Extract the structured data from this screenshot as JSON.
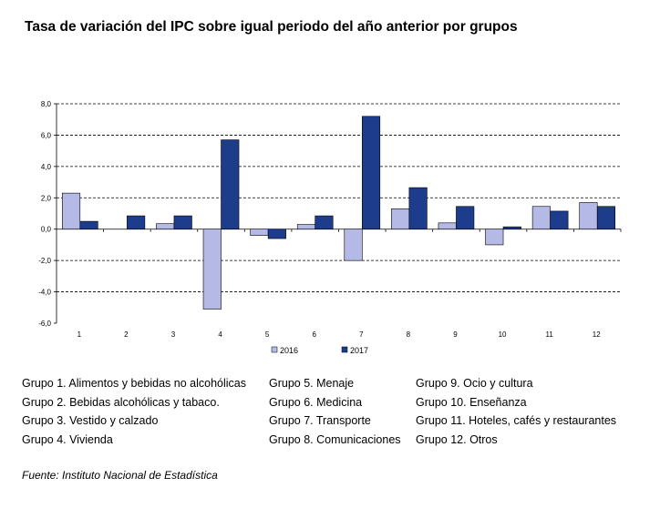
{
  "title": "Tasa de variación del IPC sobre igual periodo del año anterior por grupos",
  "source": "Fuente: Instituto Nacional de Estadística",
  "colors": {
    "s2016": "#b4b9e6",
    "s2017": "#1d3d8c",
    "grid": "#000000"
  },
  "groups": [
    "Grupo 1. Alimentos y bebidas no alcohólicas",
    "Grupo 2. Bebidas alcohólicas y  tabaco.",
    "Grupo 3. Vestido y calzado",
    "Grupo 4. Vivienda",
    "Grupo 5. Menaje",
    "Grupo 6. Medicina",
    "Grupo 7. Transporte",
    "Grupo 8. Comunicaciones",
    "Grupo 9. Ocio y cultura",
    "Grupo 10. Enseñanza",
    "Grupo 11. Hoteles, cafés y restaurantes",
    "Grupo 12. Otros"
  ],
  "chart_data": {
    "type": "bar",
    "title": "Tasa de variación del IPC sobre igual periodo del año anterior por grupos",
    "categories": [
      "1",
      "2",
      "3",
      "4",
      "5",
      "6",
      "7",
      "8",
      "9",
      "10",
      "11",
      "12"
    ],
    "series": [
      {
        "name": "2016",
        "values": [
          2.3,
          0.0,
          0.35,
          -5.1,
          -0.4,
          0.3,
          -2.0,
          1.3,
          0.4,
          -1.0,
          1.45,
          1.7
        ]
      },
      {
        "name": "2017",
        "values": [
          0.5,
          0.85,
          0.85,
          5.7,
          -0.6,
          0.85,
          7.2,
          2.65,
          1.45,
          0.15,
          1.15,
          1.45
        ]
      }
    ],
    "ylim": [
      -6.0,
      8.0
    ],
    "yticks": [
      "8,0",
      "6,0",
      "4,0",
      "2,0",
      "0,0",
      "-2,0",
      "-4,0",
      "-6,0"
    ],
    "ytick_values": [
      8,
      6,
      4,
      2,
      0,
      -2,
      -4,
      -6
    ],
    "xlabel": "",
    "ylabel": "",
    "grid": true,
    "legend": "bottom-center"
  }
}
